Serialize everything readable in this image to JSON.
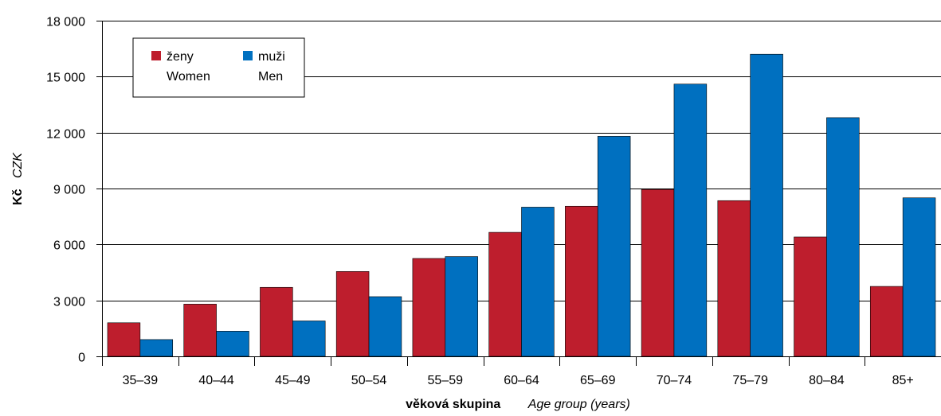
{
  "chart_data": {
    "type": "bar",
    "categories": [
      "35–39",
      "40–44",
      "45–49",
      "50–54",
      "55–59",
      "60–64",
      "65–69",
      "70–74",
      "75–79",
      "80–84",
      "85+"
    ],
    "series": [
      {
        "name": "ženy",
        "name_en": "Women",
        "color": "#be1e2d",
        "values": [
          1800,
          2800,
          3700,
          4550,
          5250,
          6650,
          8050,
          8950,
          8350,
          6400,
          3750
        ]
      },
      {
        "name": "muži",
        "name_en": "Men",
        "color": "#0070c0",
        "values": [
          900,
          1350,
          1900,
          3200,
          5350,
          8000,
          11800,
          14600,
          16200,
          12800,
          8500
        ]
      }
    ],
    "xlabel": "věková skupina",
    "xlabel_en": "Age group (years)",
    "ylabel": "Kč",
    "ylabel_en": "CZK",
    "ylim": [
      0,
      18000
    ],
    "yticks": [
      0,
      3000,
      6000,
      9000,
      12000,
      15000,
      18000
    ],
    "ytick_labels": [
      "0",
      "3 000",
      "6 000",
      "9 000",
      "12 000",
      "15 000",
      "18 000"
    ],
    "grid": true,
    "legend_position": "top-left"
  }
}
